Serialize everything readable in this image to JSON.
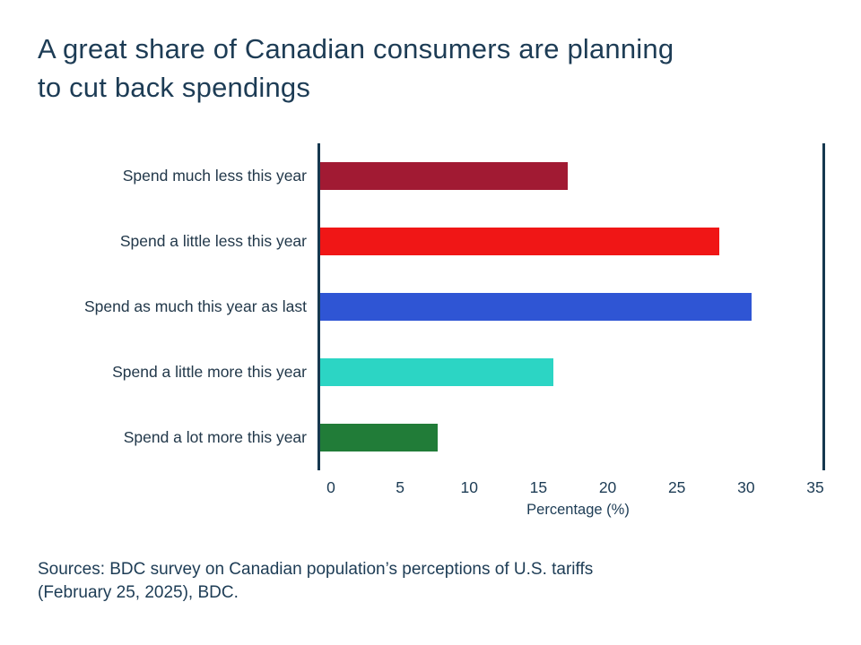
{
  "title": {
    "line1": "A great share of Canadian consumers are planning",
    "line2": "to cut back spendings"
  },
  "chart_data": {
    "type": "bar",
    "orientation": "horizontal",
    "categories": [
      "Spend much less this year",
      "Spend a little less this year",
      "Spend as much this year as last",
      "Spend a little more this year",
      "Spend a lot more this year"
    ],
    "values": [
      17.5,
      28.2,
      30.5,
      16.5,
      8.3
    ],
    "colors": [
      "#a11a33",
      "#f01616",
      "#2f55d4",
      "#2cd5c4",
      "#217c38"
    ],
    "xticks": [
      0,
      5,
      10,
      15,
      20,
      25,
      30,
      35
    ],
    "xlim": [
      0,
      35
    ],
    "xlabel": "Percentage (%)",
    "grid": "off",
    "legend": "none",
    "axis_color": "#16384f"
  },
  "sources": {
    "line1": "Sources: BDC survey on Canadian population’s perceptions of U.S. tariffs",
    "line2": "(February 25, 2025), BDC."
  }
}
